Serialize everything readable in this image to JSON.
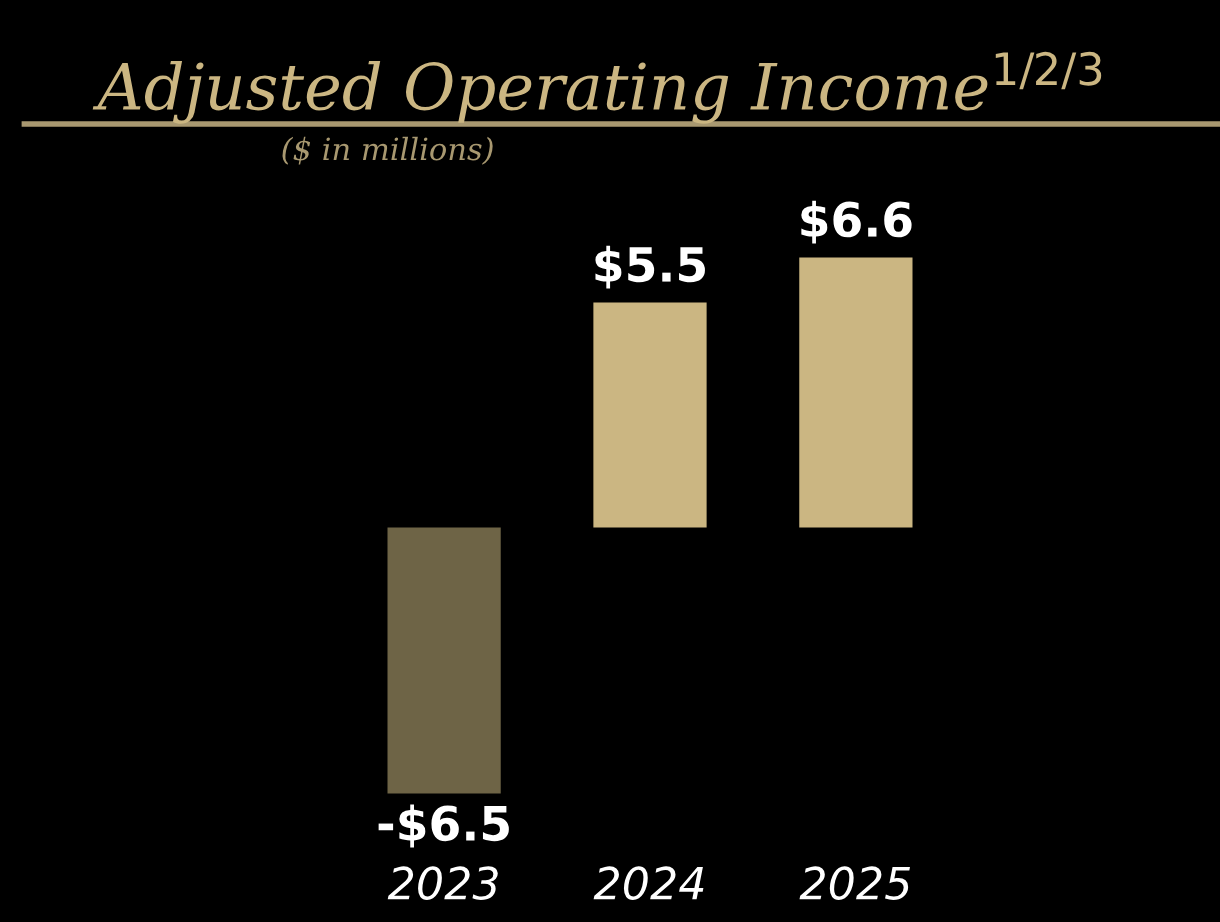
{
  "chart_data": {
    "type": "bar",
    "title": "Adjusted Operating Income$^{1/2/3}$",
    "subtitle": "($ in millions)",
    "categories": [
      "2023",
      "2024",
      "2025"
    ],
    "values": [
      -6.5,
      5.5,
      6.6
    ],
    "colors": [
      "#6e6446",
      "#cbb682",
      "#cbb682"
    ],
    "value_labels": [
      "-$6.5",
      "$5.5",
      "$6.6"
    ],
    "grid": false,
    "legend": false
  }
}
